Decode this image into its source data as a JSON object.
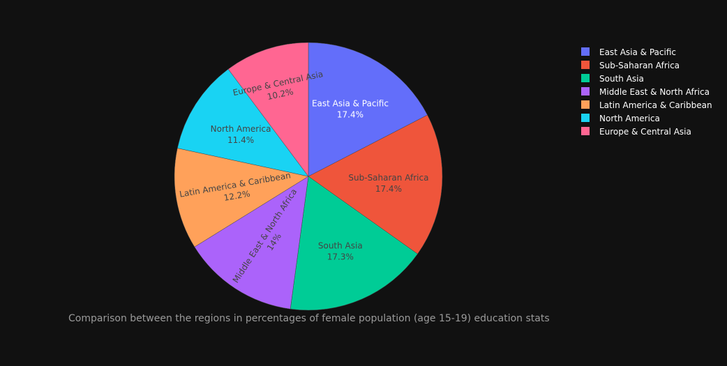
{
  "chart_data": {
    "type": "pie",
    "caption": "Comparison between the regions in percentages of female population (age 15-19) education stats",
    "slices": [
      {
        "label": "East Asia & Pacific",
        "value": 17.4,
        "text": "17.4%",
        "color": "#636efa"
      },
      {
        "label": "Sub-Saharan Africa",
        "value": 17.4,
        "text": "17.4%",
        "color": "#ef553b"
      },
      {
        "label": "South Asia",
        "value": 17.3,
        "text": "17.3%",
        "color": "#00cc96"
      },
      {
        "label": "Middle East & North Africa",
        "value": 14,
        "text": "14%",
        "color": "#ab63fa"
      },
      {
        "label": "Latin America & Caribbean",
        "value": 12.2,
        "text": "12.2%",
        "color": "#ffa15a"
      },
      {
        "label": "North America",
        "value": 11.4,
        "text": "11.4%",
        "color": "#19d3f3"
      },
      {
        "label": "Europe & Central Asia",
        "value": 10.2,
        "text": "10.2%",
        "color": "#ff6692"
      }
    ],
    "legend": {
      "placement": "right"
    }
  }
}
